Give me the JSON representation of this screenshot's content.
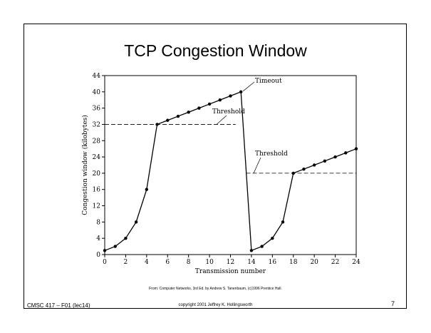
{
  "slide": {
    "credit": "From: Computer Networks, 3rd Ed. by Andrew S. Tanenbaum, (c)1996 Prentice Hall.",
    "footer_left": "CMSC 417 – F01  (lec14)",
    "footer_center": "copyright 2001 Jeffrey K. Hollingsworth",
    "page_number": "7"
  },
  "chart_data": {
    "type": "line",
    "title": "TCP Congestion Window",
    "xlabel": "Transmission number",
    "ylabel": "Congestion window (kilobytes)",
    "xlim": [
      0,
      24
    ],
    "ylim": [
      0,
      44
    ],
    "x_ticks": [
      0,
      2,
      4,
      6,
      8,
      10,
      12,
      14,
      16,
      18,
      20,
      22,
      24
    ],
    "x_tick_labels": [
      "0",
      "2",
      "4",
      "6",
      "8",
      "10",
      "12",
      "14",
      "16",
      "18",
      "20",
      "22",
      "24"
    ],
    "y_ticks": [
      0,
      4,
      8,
      12,
      16,
      20,
      24,
      28,
      32,
      36,
      40,
      44
    ],
    "y_tick_labels": [
      "0",
      "4",
      "8",
      "12",
      "16",
      "20",
      "24",
      "28",
      "32",
      "36",
      "40",
      "44"
    ],
    "series": [
      {
        "x": [
          0,
          1,
          2,
          3,
          4,
          5,
          6,
          7,
          8,
          9,
          10,
          11,
          12,
          13,
          14,
          15,
          16,
          17,
          18,
          19,
          20,
          21,
          22,
          23,
          24
        ],
        "y": [
          1,
          2,
          4,
          8,
          16,
          32,
          33,
          34,
          35,
          36,
          37,
          38,
          39,
          40,
          1,
          2,
          4,
          8,
          20,
          21,
          22,
          23,
          24,
          25,
          26
        ]
      }
    ],
    "thresholds": [
      {
        "y": 32,
        "x_start": 0,
        "x_end": 12.5
      },
      {
        "y": 20,
        "x_start": 13.5,
        "x_end": 24
      }
    ],
    "annotations": [
      {
        "text": "Timeout",
        "x": 13,
        "y": 40
      },
      {
        "text": "Threshold",
        "x": 11,
        "y": 32
      },
      {
        "text": "Threshold",
        "x": 18,
        "y": 20
      }
    ],
    "grid": false
  }
}
